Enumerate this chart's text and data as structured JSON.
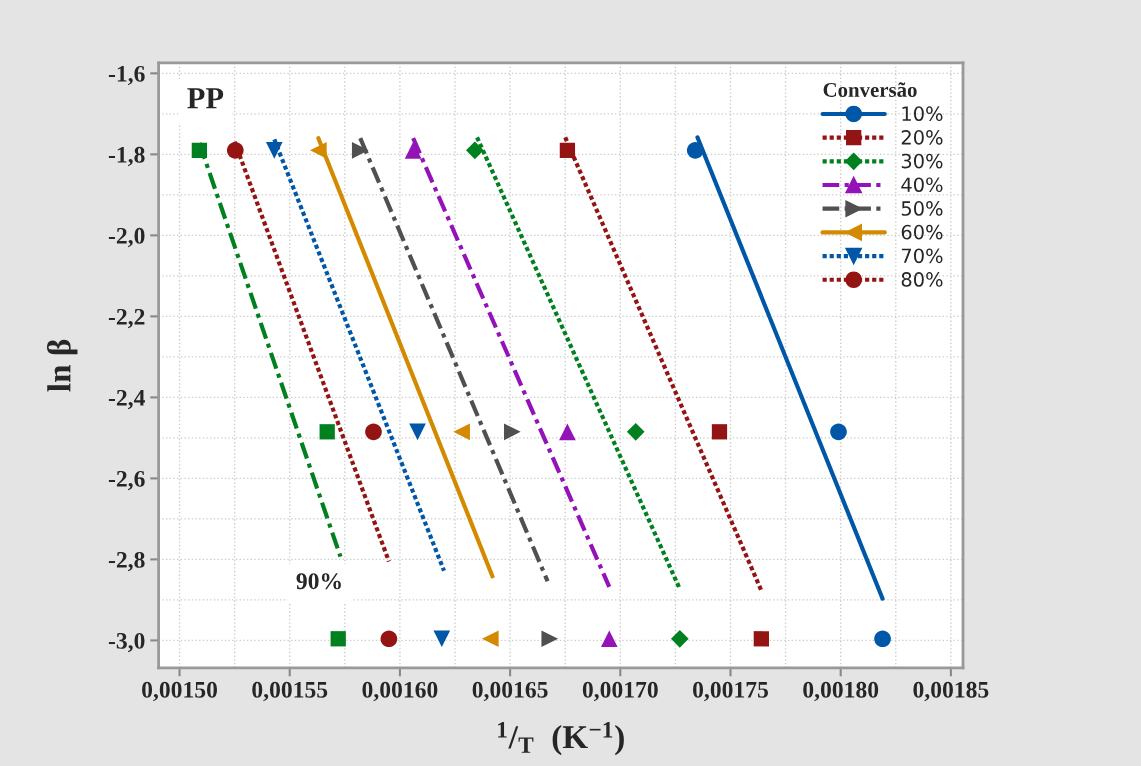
{
  "chart_data": {
    "type": "scatter",
    "xlabel": "$^{1}$/$_{T}$  (K$^{−1}$)",
    "ylabel": "ln β",
    "legend_title": "Conversão",
    "annotations": [
      "PP",
      "90%"
    ],
    "xlim": [
      0.0014905,
      0.0018555
    ],
    "ylim": [
      -3.068,
      -1.574
    ],
    "xticks": [
      {
        "value": 0.0015,
        "label": "0,00150"
      },
      {
        "value": 0.001525,
        "label": null
      },
      {
        "value": 0.00155,
        "label": "0,00155"
      },
      {
        "value": 0.001575,
        "label": null
      },
      {
        "value": 0.0016,
        "label": "0,00160"
      },
      {
        "value": 0.001625,
        "label": null
      },
      {
        "value": 0.00165,
        "label": "0,00165"
      },
      {
        "value": 0.001675,
        "label": null
      },
      {
        "value": 0.0017,
        "label": "0,00170"
      },
      {
        "value": 0.001725,
        "label": null
      },
      {
        "value": 0.00175,
        "label": "0,00175"
      },
      {
        "value": 0.001775,
        "label": null
      },
      {
        "value": 0.0018,
        "label": "0,00180"
      },
      {
        "value": 0.001825,
        "label": null
      },
      {
        "value": 0.00185,
        "label": "0,00185"
      }
    ],
    "yticks": [
      {
        "value": -1.6,
        "label": "-1,6"
      },
      {
        "value": -1.7,
        "label": null
      },
      {
        "value": -1.8,
        "label": "-1,8"
      },
      {
        "value": -1.9,
        "label": null
      },
      {
        "value": -2.0,
        "label": "-2,0"
      },
      {
        "value": -2.1,
        "label": null
      },
      {
        "value": -2.2,
        "label": "-2,2"
      },
      {
        "value": -2.3,
        "label": null
      },
      {
        "value": -2.4,
        "label": "-2,4"
      },
      {
        "value": -2.5,
        "label": null
      },
      {
        "value": -2.6,
        "label": "-2,6"
      },
      {
        "value": -2.7,
        "label": null
      },
      {
        "value": -2.8,
        "label": "-2,8"
      },
      {
        "value": -2.9,
        "label": null
      },
      {
        "value": -3.0,
        "label": "-3,0"
      }
    ],
    "grid": true,
    "legend": "top right",
    "series": [
      {
        "name": "10%",
        "color": "#0057a8",
        "marker": "circle",
        "x": [
          0.001734,
          0.001799,
          0.001819
        ],
        "values": [
          -1.79,
          -2.485,
          -2.996
        ]
      },
      {
        "type": "line",
        "color": "#0057a8",
        "line_style": "solid",
        "x": [
          0.001735,
          0.001819
        ],
        "values": [
          -1.758,
          -2.897
        ]
      },
      {
        "name": "20%",
        "color": "#941414",
        "marker": "square",
        "x": [
          0.001676,
          0.001745,
          0.001764
        ],
        "values": [
          -1.79,
          -2.485,
          -2.996
        ]
      },
      {
        "type": "line",
        "color": "#941414",
        "line_style": "dotted",
        "x": [
          0.001675,
          0.001764
        ],
        "values": [
          -1.758,
          -2.877
        ]
      },
      {
        "name": "30%",
        "color": "#00801e",
        "marker": "diamond",
        "x": [
          0.001634,
          0.001707,
          0.001727
        ],
        "values": [
          -1.79,
          -2.485,
          -2.996
        ]
      },
      {
        "type": "line",
        "color": "#00801e",
        "line_style": "dotted",
        "x": [
          0.001635,
          0.001727
        ],
        "values": [
          -1.758,
          -2.873
        ]
      },
      {
        "name": "40%",
        "color": "#9313b8",
        "marker": "triangle",
        "x": [
          0.001606,
          0.001676,
          0.001695
        ],
        "values": [
          -1.79,
          -2.485,
          -2.996
        ]
      },
      {
        "type": "line",
        "color": "#9313b8",
        "line_style": "dashed",
        "x": [
          0.001606,
          0.001695
        ],
        "values": [
          -1.76,
          -2.868
        ]
      },
      {
        "name": "50%",
        "color": "#505050",
        "marker": "triangle-right",
        "x": [
          0.001582,
          0.001651,
          0.001668
        ],
        "values": [
          -1.79,
          -2.485,
          -2.996
        ]
      },
      {
        "type": "line",
        "color": "#505050",
        "line_style": "dashed",
        "x": [
          0.001582,
          0.001667
        ],
        "values": [
          -1.76,
          -2.854
        ]
      },
      {
        "name": "60%",
        "color": "#d48a00",
        "marker": "triangle-left",
        "x": [
          0.001563,
          0.001628,
          0.001641
        ],
        "values": [
          -1.79,
          -2.485,
          -2.996
        ]
      },
      {
        "type": "line",
        "color": "#d48a00",
        "line_style": "solid",
        "x": [
          0.001563,
          0.001642
        ],
        "values": [
          -1.76,
          -2.842
        ]
      },
      {
        "name": "70%",
        "color": "#0057a8",
        "marker": "triangle-down",
        "x": [
          0.001543,
          0.001608,
          0.001619
        ],
        "values": [
          -1.79,
          -2.485,
          -2.996
        ]
      },
      {
        "type": "line",
        "color": "#0057a8",
        "line_style": "dotted",
        "x": [
          0.001543,
          0.00162
        ],
        "values": [
          -1.763,
          -2.828
        ]
      },
      {
        "name": "80%",
        "color": "#941414",
        "marker": "circle",
        "x": [
          0.0015253,
          0.001588,
          0.001595
        ],
        "values": [
          -1.79,
          -2.485,
          -2.996
        ]
      },
      {
        "type": "line",
        "color": "#941414",
        "line_style": "dotted",
        "x": [
          0.001525,
          0.001595
        ],
        "values": [
          -1.769,
          -2.805
        ]
      },
      {
        "color": "#00801e",
        "marker": "square",
        "x": [
          0.001509,
          0.001567,
          0.001572
        ],
        "values": [
          -1.79,
          -2.485,
          -2.996
        ]
      },
      {
        "type": "line",
        "color": "#00801e",
        "line_style": "dashed",
        "x": [
          0.001509,
          0.001573
        ],
        "values": [
          -1.772,
          -2.793
        ]
      }
    ]
  }
}
